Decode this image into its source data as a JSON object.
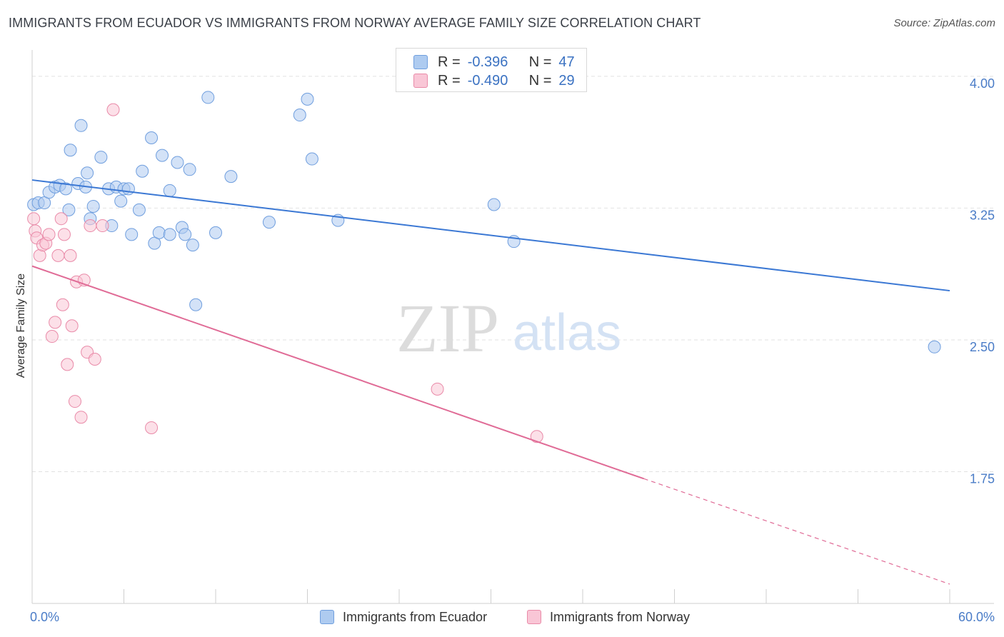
{
  "title": "IMMIGRANTS FROM ECUADOR VS IMMIGRANTS FROM NORWAY AVERAGE FAMILY SIZE CORRELATION CHART",
  "source": "Source: ZipAtlas.com",
  "watermark": {
    "zip": "ZIP",
    "atlas": "atlas"
  },
  "legend": {
    "r_label": "R =",
    "n_label": "N =",
    "rows": [
      {
        "r": "-0.396",
        "n": "47",
        "color": "#aecbf0",
        "border": "#6f9ede"
      },
      {
        "r": "-0.490",
        "n": "29",
        "color": "#f9c6d6",
        "border": "#e98aa8"
      }
    ]
  },
  "chart_data": {
    "type": "scatter",
    "xlabel": "",
    "ylabel": "Average Family Size",
    "xlim": [
      0,
      60
    ],
    "ylim": [
      1.0,
      4.15
    ],
    "x_tick_labels": {
      "left": "0.0%",
      "right": "60.0%"
    },
    "y_ticks": [
      {
        "value": 4.0,
        "label": "4.00"
      },
      {
        "value": 3.25,
        "label": "3.25"
      },
      {
        "value": 2.5,
        "label": "2.50"
      },
      {
        "value": 1.75,
        "label": "1.75"
      }
    ],
    "grid": true,
    "series": [
      {
        "name": "Immigrants from Ecuador",
        "color": "#aecbf0",
        "stroke": "#6f9ede",
        "line_color": "#3b78d4",
        "points": [
          [
            0.1,
            3.27
          ],
          [
            0.4,
            3.28
          ],
          [
            0.8,
            3.28
          ],
          [
            1.1,
            3.34
          ],
          [
            1.5,
            3.37
          ],
          [
            1.8,
            3.38
          ],
          [
            2.2,
            3.36
          ],
          [
            2.4,
            3.24
          ],
          [
            2.5,
            3.58
          ],
          [
            3.0,
            3.39
          ],
          [
            3.2,
            3.72
          ],
          [
            3.5,
            3.37
          ],
          [
            3.6,
            3.45
          ],
          [
            4.0,
            3.26
          ],
          [
            3.8,
            3.19
          ],
          [
            4.5,
            3.54
          ],
          [
            5.0,
            3.36
          ],
          [
            5.2,
            3.15
          ],
          [
            5.5,
            3.37
          ],
          [
            5.8,
            3.29
          ],
          [
            6.0,
            3.36
          ],
          [
            6.3,
            3.36
          ],
          [
            6.5,
            3.1
          ],
          [
            7.0,
            3.24
          ],
          [
            7.2,
            3.46
          ],
          [
            7.8,
            3.65
          ],
          [
            8.0,
            3.05
          ],
          [
            8.3,
            3.11
          ],
          [
            8.5,
            3.55
          ],
          [
            9.0,
            3.1
          ],
          [
            9.0,
            3.35
          ],
          [
            9.5,
            3.51
          ],
          [
            9.8,
            3.14
          ],
          [
            10.0,
            3.1
          ],
          [
            10.3,
            3.47
          ],
          [
            10.5,
            3.04
          ],
          [
            10.7,
            2.7
          ],
          [
            11.5,
            3.88
          ],
          [
            12.0,
            3.11
          ],
          [
            13.0,
            3.43
          ],
          [
            15.5,
            3.17
          ],
          [
            17.5,
            3.78
          ],
          [
            18.0,
            3.87
          ],
          [
            18.3,
            3.53
          ],
          [
            20.0,
            3.18
          ],
          [
            30.2,
            3.27
          ],
          [
            31.5,
            3.06
          ],
          [
            59.0,
            2.46
          ]
        ],
        "trend": {
          "x0": 0,
          "y0": 3.41,
          "x1": 60,
          "y1": 2.78
        }
      },
      {
        "name": "Immigrants from Norway",
        "color": "#f9c6d6",
        "stroke": "#e98aa8",
        "line_color": "#e06b96",
        "points": [
          [
            0.1,
            3.19
          ],
          [
            0.2,
            3.12
          ],
          [
            0.3,
            3.08
          ],
          [
            0.5,
            2.98
          ],
          [
            0.7,
            3.04
          ],
          [
            0.9,
            3.05
          ],
          [
            1.1,
            3.1
          ],
          [
            1.3,
            2.52
          ],
          [
            1.5,
            2.6
          ],
          [
            1.7,
            2.98
          ],
          [
            1.9,
            3.19
          ],
          [
            2.0,
            2.7
          ],
          [
            2.1,
            3.1
          ],
          [
            2.3,
            2.36
          ],
          [
            2.5,
            2.98
          ],
          [
            2.6,
            2.58
          ],
          [
            2.8,
            2.15
          ],
          [
            2.9,
            2.83
          ],
          [
            3.2,
            2.06
          ],
          [
            3.4,
            2.84
          ],
          [
            3.6,
            2.43
          ],
          [
            3.8,
            3.15
          ],
          [
            4.1,
            2.39
          ],
          [
            4.6,
            3.15
          ],
          [
            5.3,
            3.81
          ],
          [
            7.8,
            2.0
          ],
          [
            26.5,
            2.22
          ],
          [
            33.0,
            1.95
          ]
        ],
        "trend": {
          "x0": 0,
          "y0": 2.92,
          "x1": 40,
          "y1": 1.71
        },
        "trend_dashed": {
          "x0": 40,
          "y0": 1.71,
          "x1": 60,
          "y1": 1.11
        }
      }
    ]
  }
}
